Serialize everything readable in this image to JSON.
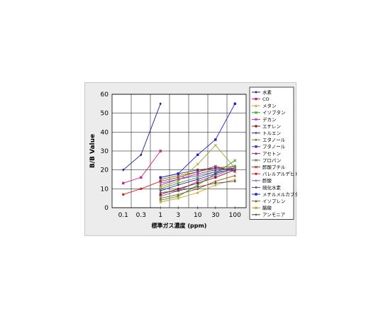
{
  "chart_data": {
    "type": "line",
    "title": "",
    "xlabel": "標準ガス濃度 (ppm)",
    "ylabel": "B/B Value",
    "x_scale": "log",
    "categories": [
      "0.1",
      "0.3",
      "1",
      "3",
      "10",
      "30",
      "100"
    ],
    "x": [
      0.1,
      0.3,
      1,
      3,
      10,
      30,
      100
    ],
    "ylim": [
      0,
      60
    ],
    "yticks": [
      0,
      10,
      20,
      30,
      40,
      50,
      60
    ],
    "grid": true,
    "legend_position": "right",
    "series": [
      {
        "name": "水素",
        "color": "#1f1f8f",
        "marker": "diamond",
        "x": [
          0.1,
          0.3,
          1
        ],
        "y": [
          20,
          28,
          55
        ]
      },
      {
        "name": "CO",
        "color": "#cc2288",
        "marker": "square",
        "x": [
          0.1,
          0.3,
          1
        ],
        "y": [
          13,
          16,
          30
        ]
      },
      {
        "name": "メタン",
        "color": "#d4a020",
        "marker": "triangle",
        "x": [
          1,
          3,
          10,
          30,
          100
        ],
        "y": [
          3,
          5,
          8,
          12,
          15
        ]
      },
      {
        "name": "イソブタン",
        "color": "#2aa02a",
        "marker": "x",
        "x": [
          1,
          3,
          10,
          30,
          100
        ],
        "y": [
          4,
          6,
          12,
          18,
          25
        ]
      },
      {
        "name": "デカン",
        "color": "#9a40a0",
        "marker": "star",
        "x": [
          1,
          3,
          10,
          30,
          100
        ],
        "y": [
          6,
          9,
          14,
          17,
          21
        ]
      },
      {
        "name": "エチレン",
        "color": "#8b1a1a",
        "marker": "circle",
        "x": [
          1,
          3,
          10,
          30,
          100
        ],
        "y": [
          7,
          10,
          13,
          16,
          20
        ]
      },
      {
        "name": "トルエン",
        "color": "#20208b",
        "marker": "plus",
        "x": [
          1,
          3,
          10,
          30,
          100
        ],
        "y": [
          9,
          12,
          15,
          18,
          21
        ]
      },
      {
        "name": "エタノール",
        "color": "#7a7a20",
        "marker": "diamond",
        "x": [
          1,
          3,
          10,
          30,
          100
        ],
        "y": [
          15,
          17,
          19,
          21,
          22
        ]
      },
      {
        "name": "プタノール",
        "color": "#3a3aa0",
        "marker": "square",
        "x": [
          1,
          3,
          10,
          30,
          100
        ],
        "y": [
          16,
          18,
          20,
          21,
          20
        ]
      },
      {
        "name": "アセトン",
        "color": "#a02090",
        "marker": "triangle",
        "x": [
          1,
          3,
          10,
          30,
          100
        ],
        "y": [
          12,
          15,
          18,
          20,
          21
        ]
      },
      {
        "name": "プロパン",
        "color": "#5a8a5a",
        "marker": "x",
        "x": [
          1,
          3,
          10,
          30,
          100
        ],
        "y": [
          10,
          13,
          16,
          19,
          22
        ]
      },
      {
        "name": "酢酸ブチル",
        "color": "#b03030",
        "marker": "star",
        "x": [
          1,
          3,
          10,
          30,
          100
        ],
        "y": [
          14,
          16,
          19,
          22,
          19
        ]
      },
      {
        "name": "バレルアルデヒド",
        "color": "#e0201a",
        "marker": "circle",
        "x": [
          0.1,
          0.3,
          1
        ],
        "y": [
          7,
          10,
          14
        ]
      },
      {
        "name": "酢酸",
        "color": "#6060c0",
        "marker": "plus",
        "x": [
          1,
          3,
          10,
          30,
          100
        ],
        "y": [
          13,
          15,
          17,
          19,
          20
        ]
      },
      {
        "name": "硫化水素",
        "color": "#505050",
        "marker": "diamond",
        "x": [
          1,
          3,
          10,
          30,
          100
        ],
        "y": [
          8,
          9,
          11,
          13,
          14
        ]
      },
      {
        "name": "メチルメルカプタン",
        "color": "#2020c8",
        "marker": "square",
        "x": [
          1,
          3,
          10,
          30,
          100
        ],
        "y": [
          16,
          18,
          28,
          36,
          55
        ]
      },
      {
        "name": "イソプレン",
        "color": "#9a5a20",
        "marker": "triangle",
        "x": [
          1,
          3,
          10,
          30,
          100
        ],
        "y": [
          5,
          7,
          10,
          14,
          17
        ]
      },
      {
        "name": "酪酸",
        "color": "#a0a020",
        "marker": "x",
        "x": [
          1,
          3,
          10,
          30,
          100
        ],
        "y": [
          11,
          14,
          23,
          33,
          21
        ]
      },
      {
        "name": "アンモニア",
        "color": "#404040",
        "marker": "plus",
        "x": [
          1,
          3,
          10,
          30,
          100
        ],
        "y": [
          0,
          0,
          0,
          0,
          0
        ]
      }
    ]
  }
}
